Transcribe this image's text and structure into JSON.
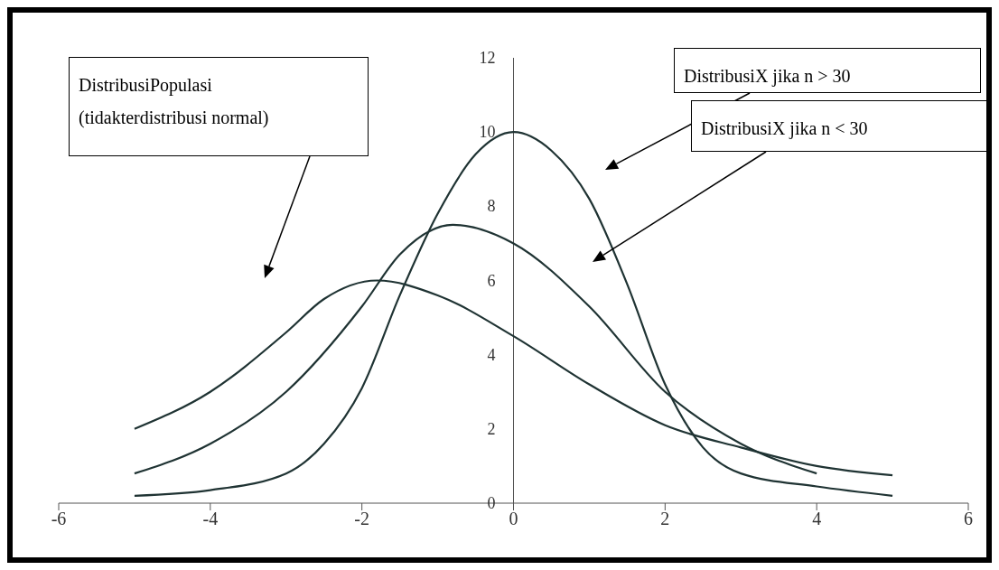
{
  "chart_data": {
    "type": "line",
    "xlim": [
      -6,
      6
    ],
    "xticks": [
      -6,
      -4,
      -2,
      0,
      2,
      4,
      6
    ],
    "ylim": [
      0,
      12
    ],
    "yticks": [
      0,
      2,
      4,
      6,
      8,
      10,
      12
    ],
    "grid": false,
    "marker": "none",
    "line_style": "solid",
    "series": [
      {
        "color": "#1f3333",
        "x": [
          -5,
          -4,
          -3,
          -2.5,
          -2,
          -1.5,
          -1,
          -0.5,
          0,
          0.5,
          1,
          1.5,
          2,
          2.5,
          3,
          4,
          5
        ],
        "values": [
          0.2,
          0.35,
          0.8,
          1.6,
          3.1,
          5.6,
          7.8,
          9.4,
          10,
          9.5,
          8.2,
          5.9,
          3.2,
          1.5,
          0.8,
          0.45,
          0.2
        ]
      },
      {
        "color": "#1f3333",
        "x": [
          -5,
          -4,
          -3,
          -2,
          -1.5,
          -0.8,
          0,
          1,
          2,
          3,
          4
        ],
        "values": [
          0.8,
          1.6,
          3.0,
          5.3,
          6.7,
          7.5,
          7.0,
          5.3,
          3.0,
          1.6,
          0.8
        ]
      },
      {
        "color": "#1f3333",
        "x": [
          -5,
          -4,
          -3,
          -2.5,
          -1.8,
          -1,
          0,
          1,
          2,
          3,
          4,
          5
        ],
        "values": [
          2.0,
          3.0,
          4.6,
          5.5,
          6.0,
          5.6,
          4.5,
          3.2,
          2.1,
          1.5,
          1.0,
          0.75
        ]
      }
    ],
    "annotations": [
      "DistribusiPopulasi\n(tidakterdistribusi normal)",
      "DistribusiX jika n > 30",
      "DistribusiX jika n < 30"
    ]
  }
}
